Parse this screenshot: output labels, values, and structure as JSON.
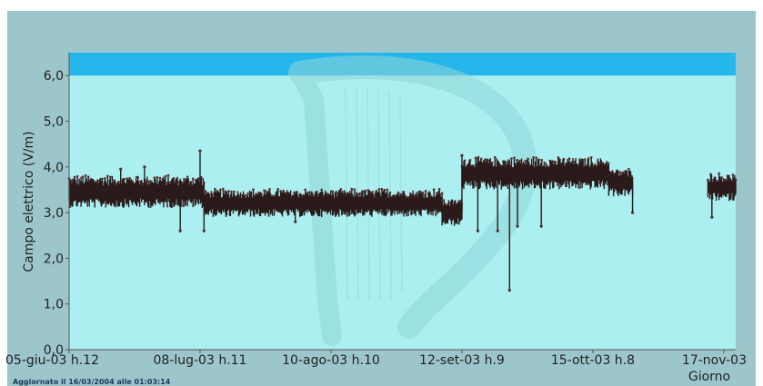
{
  "chart_data": {
    "type": "scatter",
    "ylabel": "Campo elettrico (V/m)",
    "xlabel": "Giorno",
    "ylim": [
      0,
      6.5
    ],
    "yticks": [
      "0,0",
      "1,0",
      "2,0",
      "3,0",
      "4,0",
      "5,0",
      "6,0"
    ],
    "xticks": [
      "05-giu-03 h.12",
      "08-lug-03 h.11",
      "10-ago-03 h.10",
      "12-set-03 h.9",
      "15-ott-03 h.8",
      "17-nov-03"
    ],
    "x_range": [
      "05-giu-03",
      "20-nov-03"
    ],
    "threshold_band": {
      "from": 6.0,
      "to": 6.5,
      "color": "#25b6ec"
    },
    "plot_bg": "#abeff0",
    "series": [
      {
        "color": "#2a1a1a",
        "segments": [
          {
            "from": "05-giu-03",
            "to": "09-lug-03",
            "mean": 3.45,
            "spread": 0.35
          },
          {
            "from": "09-lug-03",
            "to": "07-set-03",
            "mean": 3.2,
            "spread": 0.3
          },
          {
            "from": "07-set-03",
            "to": "12-set-03",
            "mean": 3.0,
            "spread": 0.3
          },
          {
            "from": "12-set-03",
            "to": "19-ott-03",
            "mean": 3.85,
            "spread": 0.35
          },
          {
            "from": "19-ott-03",
            "to": "25-ott-03",
            "mean": 3.65,
            "spread": 0.3
          },
          {
            "from": "13-nov-03",
            "to": "20-nov-03",
            "mean": 3.55,
            "spread": 0.3
          }
        ],
        "spikes": [
          {
            "date": "18-giu-03",
            "value": 3.95
          },
          {
            "date": "24-giu-03",
            "value": 4.0
          },
          {
            "date": "03-lug-03",
            "value": 2.6
          },
          {
            "date": "08-lug-03",
            "value": 4.35
          },
          {
            "date": "09-lug-03",
            "value": 2.6
          },
          {
            "date": "01-ago-03",
            "value": 2.8
          },
          {
            "date": "12-set-03",
            "value": 4.25
          },
          {
            "date": "16-set-03",
            "value": 2.6
          },
          {
            "date": "21-set-03",
            "value": 2.6
          },
          {
            "date": "24-set-03",
            "value": 1.3
          },
          {
            "date": "26-set-03",
            "value": 2.7
          },
          {
            "date": "02-ott-03",
            "value": 2.7
          },
          {
            "date": "25-ott-03",
            "value": 3.0
          },
          {
            "date": "14-nov-03",
            "value": 2.9
          }
        ]
      }
    ]
  },
  "footer": {
    "updated": "Aggiornato il 16/03/2004 alle 01:03:14"
  }
}
